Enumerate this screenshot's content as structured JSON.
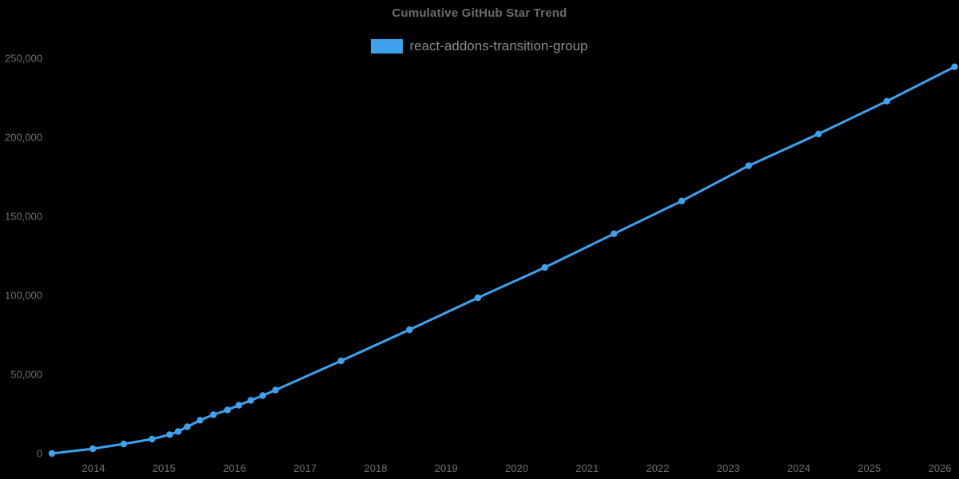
{
  "colors": {
    "background": "#000000",
    "line": "#3ea2ee",
    "title_text": "#6b6b6b",
    "legend_text": "#8a8a8a",
    "tick_text": "#707070"
  },
  "chart": {
    "title": "Cumulative GitHub Star Trend",
    "legend": {
      "label": "react-addons-transition-group",
      "swatch_color": "#3ea2ee"
    }
  },
  "chart_data": {
    "type": "line",
    "title": "Cumulative GitHub Star Trend",
    "xlabel": "",
    "ylabel": "",
    "grid": false,
    "legend_position": "top-center",
    "marker": "circle",
    "x_range": [
      2013.3,
      2026.3
    ],
    "y_range": [
      0,
      250000
    ],
    "x_ticks": [
      2014,
      2015,
      2016,
      2017,
      2018,
      2019,
      2020,
      2021,
      2022,
      2023,
      2024,
      2025,
      2026
    ],
    "y_ticks": [
      {
        "value": 0,
        "label": "0"
      },
      {
        "value": 50000,
        "label": "50,000"
      },
      {
        "value": 100000,
        "label": "100,000"
      },
      {
        "value": 150000,
        "label": "150,000"
      },
      {
        "value": 200000,
        "label": "200,000"
      },
      {
        "value": 250000,
        "label": "250,000"
      }
    ],
    "series": [
      {
        "name": "react-addons-transition-group",
        "color": "#3ea2ee",
        "points": [
          {
            "year": 2013.41,
            "stars": 0
          },
          {
            "year": 2013.99,
            "stars": 3000
          },
          {
            "year": 2014.43,
            "stars": 6000
          },
          {
            "year": 2014.83,
            "stars": 9100
          },
          {
            "year": 2015.08,
            "stars": 11900
          },
          {
            "year": 2015.2,
            "stars": 13900
          },
          {
            "year": 2015.33,
            "stars": 16900
          },
          {
            "year": 2015.51,
            "stars": 21000
          },
          {
            "year": 2015.7,
            "stars": 24500
          },
          {
            "year": 2015.9,
            "stars": 27500
          },
          {
            "year": 2016.06,
            "stars": 30500
          },
          {
            "year": 2016.23,
            "stars": 33600
          },
          {
            "year": 2016.4,
            "stars": 36600
          },
          {
            "year": 2016.58,
            "stars": 40100
          },
          {
            "year": 2017.51,
            "stars": 58600
          },
          {
            "year": 2018.48,
            "stars": 78300
          },
          {
            "year": 2019.45,
            "stars": 98500
          },
          {
            "year": 2020.4,
            "stars": 117700
          },
          {
            "year": 2021.38,
            "stars": 139000
          },
          {
            "year": 2022.34,
            "stars": 159700
          },
          {
            "year": 2023.29,
            "stars": 182000
          },
          {
            "year": 2024.28,
            "stars": 202100
          },
          {
            "year": 2025.25,
            "stars": 222900
          },
          {
            "year": 2026.21,
            "stars": 244600
          }
        ]
      }
    ]
  }
}
